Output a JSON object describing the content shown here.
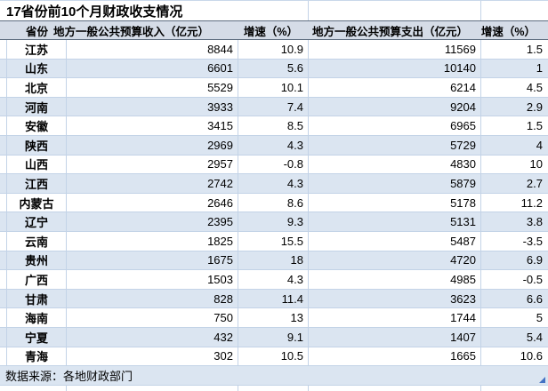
{
  "chart_data": {
    "type": "table",
    "title": "17省份前10个月财政收支情况",
    "columns": [
      "省份",
      "地方一般公共预算收入（亿元）",
      "增速（%）",
      "地方一般公共预算支出（亿元）",
      "增速（%）"
    ],
    "rows": [
      [
        "江苏",
        "8844",
        "10.9",
        "11569",
        "1.5"
      ],
      [
        "山东",
        "6601",
        "5.6",
        "10140",
        "1"
      ],
      [
        "北京",
        "5529",
        "10.1",
        "6214",
        "4.5"
      ],
      [
        "河南",
        "3933",
        "7.4",
        "9204",
        "2.9"
      ],
      [
        "安徽",
        "3415",
        "8.5",
        "6965",
        "1.5"
      ],
      [
        "陕西",
        "2969",
        "4.3",
        "5729",
        "4"
      ],
      [
        "山西",
        "2957",
        "-0.8",
        "4830",
        "10"
      ],
      [
        "江西",
        "2742",
        "4.3",
        "5879",
        "2.7"
      ],
      [
        "内蒙古",
        "2646",
        "8.6",
        "5178",
        "11.2"
      ],
      [
        "辽宁",
        "2395",
        "9.3",
        "5131",
        "3.8"
      ],
      [
        "云南",
        "1825",
        "15.5",
        "5487",
        "-3.5"
      ],
      [
        "贵州",
        "1675",
        "18",
        "4720",
        "6.9"
      ],
      [
        "广西",
        "1503",
        "4.3",
        "4985",
        "-0.5"
      ],
      [
        "甘肃",
        "828",
        "11.4",
        "3623",
        "6.6"
      ],
      [
        "海南",
        "750",
        "13",
        "1744",
        "5"
      ],
      [
        "宁夏",
        "432",
        "9.1",
        "1407",
        "5.4"
      ],
      [
        "青海",
        "302",
        "10.5",
        "1665",
        "10.6"
      ]
    ],
    "source_note": "数据来源：各地财政部门",
    "layout_hints": {
      "banded_rows": true,
      "grid": true,
      "numbers_alignment": "right"
    }
  },
  "colors": {
    "band": "#dbe5f1",
    "header_bg": "#d5dce7",
    "header_border": "#5e6e80",
    "gridline": "#c3d3e7",
    "handle": "#4472c4"
  }
}
